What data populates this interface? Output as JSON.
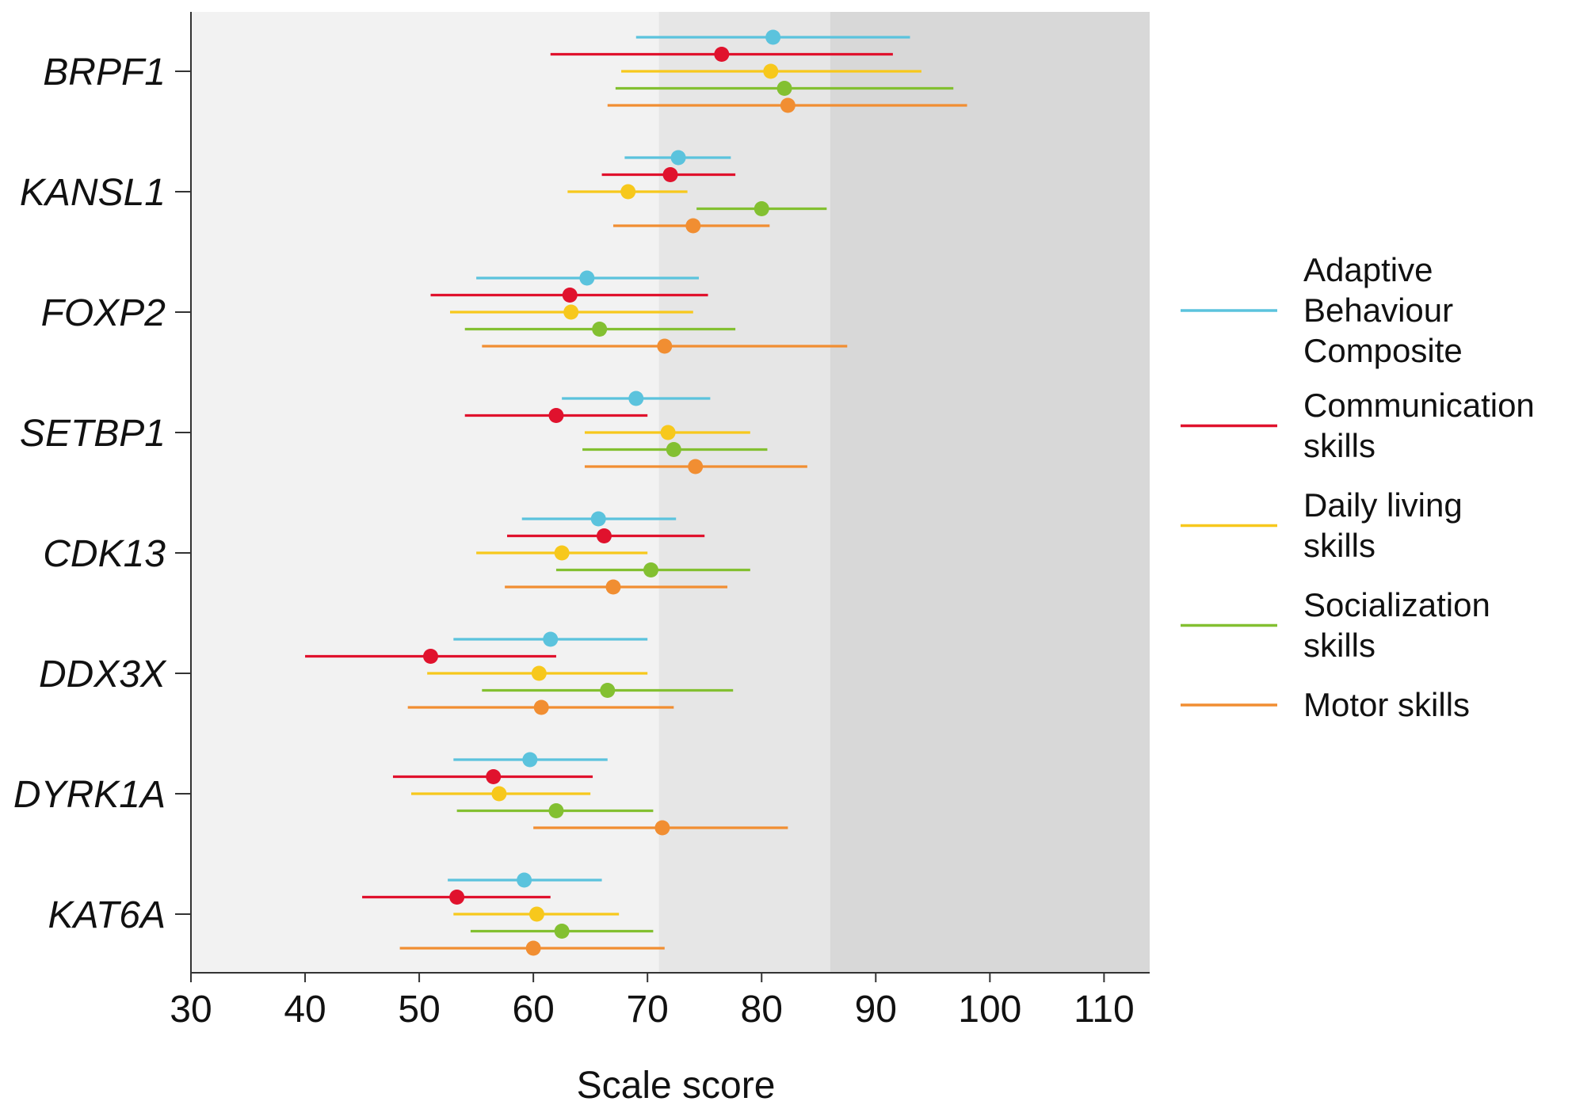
{
  "chart_data": {
    "type": "scatter",
    "subtype": "point-with-error-bars",
    "orientation": "horizontal",
    "title": "",
    "xlabel": "Scale score",
    "ylabel": "",
    "xlim": [
      30,
      114
    ],
    "xticks": [
      30,
      40,
      50,
      60,
      70,
      80,
      90,
      100,
      110
    ],
    "grid": false,
    "legend_position": "right",
    "background_bands": [
      {
        "from": 30,
        "to": 71,
        "color": "#f2f2f2"
      },
      {
        "from": 71,
        "to": 86,
        "color": "#e6e6e6"
      },
      {
        "from": 86,
        "to": 114,
        "color": "#d8d8d8"
      }
    ],
    "categories": [
      "BRPF1",
      "KANSL1",
      "FOXP2",
      "SETBP1",
      "CDK13",
      "DDX3X",
      "DYRK1A",
      "KAT6A"
    ],
    "series": [
      {
        "name": "Adaptive Behaviour Composite",
        "legend_lines": [
          "Adaptive",
          "Behaviour",
          "Composite"
        ],
        "color": "#5bc3dd",
        "points": [
          {
            "value": 81.0,
            "low": 69.0,
            "high": 93.0
          },
          {
            "value": 72.7,
            "low": 68.0,
            "high": 77.3
          },
          {
            "value": 64.7,
            "low": 55.0,
            "high": 74.5
          },
          {
            "value": 69.0,
            "low": 62.5,
            "high": 75.5
          },
          {
            "value": 65.7,
            "low": 59.0,
            "high": 72.5
          },
          {
            "value": 61.5,
            "low": 53.0,
            "high": 70.0
          },
          {
            "value": 59.7,
            "low": 53.0,
            "high": 66.5
          },
          {
            "value": 59.2,
            "low": 52.5,
            "high": 66.0
          }
        ]
      },
      {
        "name": "Communication skills",
        "legend_lines": [
          "Communication",
          "skills"
        ],
        "color": "#e0122d",
        "points": [
          {
            "value": 76.5,
            "low": 61.5,
            "high": 91.5
          },
          {
            "value": 72.0,
            "low": 66.0,
            "high": 77.7
          },
          {
            "value": 63.2,
            "low": 51.0,
            "high": 75.3
          },
          {
            "value": 62.0,
            "low": 54.0,
            "high": 70.0
          },
          {
            "value": 66.2,
            "low": 57.7,
            "high": 75.0
          },
          {
            "value": 51.0,
            "low": 40.0,
            "high": 62.0
          },
          {
            "value": 56.5,
            "low": 47.7,
            "high": 65.2
          },
          {
            "value": 53.3,
            "low": 45.0,
            "high": 61.5
          }
        ]
      },
      {
        "name": "Daily living skills",
        "legend_lines": [
          "Daily living",
          "skills"
        ],
        "color": "#f7c81c",
        "points": [
          {
            "value": 80.8,
            "low": 67.7,
            "high": 94.0
          },
          {
            "value": 68.3,
            "low": 63.0,
            "high": 73.5
          },
          {
            "value": 63.3,
            "low": 52.7,
            "high": 74.0
          },
          {
            "value": 71.8,
            "low": 64.5,
            "high": 79.0
          },
          {
            "value": 62.5,
            "low": 55.0,
            "high": 70.0
          },
          {
            "value": 60.5,
            "low": 50.7,
            "high": 70.0
          },
          {
            "value": 57.0,
            "low": 49.3,
            "high": 65.0
          },
          {
            "value": 60.3,
            "low": 53.0,
            "high": 67.5
          }
        ]
      },
      {
        "name": "Socialization skills",
        "legend_lines": [
          "Socialization",
          "skills"
        ],
        "color": "#83c031",
        "points": [
          {
            "value": 82.0,
            "low": 67.2,
            "high": 96.8
          },
          {
            "value": 80.0,
            "low": 74.3,
            "high": 85.7
          },
          {
            "value": 65.8,
            "low": 54.0,
            "high": 77.7
          },
          {
            "value": 72.3,
            "low": 64.3,
            "high": 80.5
          },
          {
            "value": 70.3,
            "low": 62.0,
            "high": 79.0
          },
          {
            "value": 66.5,
            "low": 55.5,
            "high": 77.5
          },
          {
            "value": 62.0,
            "low": 53.3,
            "high": 70.5
          },
          {
            "value": 62.5,
            "low": 54.5,
            "high": 70.5
          }
        ]
      },
      {
        "name": "Motor skills",
        "legend_lines": [
          "Motor skills"
        ],
        "color": "#f18e32",
        "points": [
          {
            "value": 82.3,
            "low": 66.5,
            "high": 98.0
          },
          {
            "value": 74.0,
            "low": 67.0,
            "high": 80.7
          },
          {
            "value": 71.5,
            "low": 55.5,
            "high": 87.5
          },
          {
            "value": 74.2,
            "low": 64.5,
            "high": 84.0
          },
          {
            "value": 67.0,
            "low": 57.5,
            "high": 77.0
          },
          {
            "value": 60.7,
            "low": 49.0,
            "high": 72.3
          },
          {
            "value": 71.3,
            "low": 60.0,
            "high": 82.3
          },
          {
            "value": 60.0,
            "low": 48.3,
            "high": 71.5
          }
        ]
      }
    ]
  }
}
